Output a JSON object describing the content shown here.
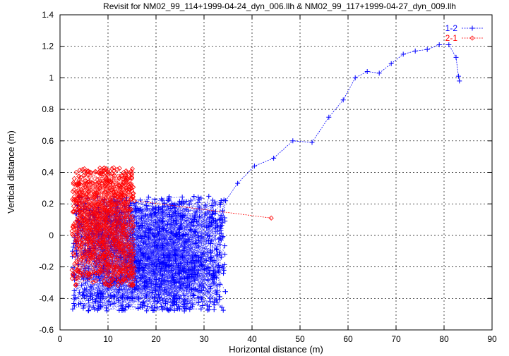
{
  "chart_data": {
    "type": "line",
    "title": "Revisit for NM02_99_114+1999-04-24_dyn_006.llh & NM02_99_117+1999-04-27_dyn_009.llh",
    "xlabel": "Horizontal distance (m)",
    "ylabel": "Vertical distance (m)",
    "xlim": [
      0,
      90
    ],
    "ylim": [
      -0.6,
      1.4
    ],
    "xticks": [
      "0",
      "10",
      "20",
      "30",
      "40",
      "50",
      "60",
      "70",
      "80",
      "90"
    ],
    "yticks": [
      "-0.6",
      "-0.4",
      "-0.2",
      "0",
      "0.2",
      "0.4",
      "0.6",
      "0.8",
      "1",
      "1.2",
      "1.4"
    ],
    "grid": true,
    "legend_position": "top-right",
    "series": [
      {
        "name": "1-2",
        "color": "#0000ff",
        "marker": "plus",
        "dense_region": {
          "x": [
            2.5,
            34.5
          ],
          "y": [
            -0.48,
            0.25
          ]
        },
        "x": [
          34.5,
          37,
          40.5,
          44.5,
          48.5,
          52.5,
          56,
          59,
          61.5,
          64,
          66.5,
          69,
          71.5,
          74,
          76.5,
          79,
          81,
          82.5,
          83,
          83.2
        ],
        "y": [
          0.22,
          0.33,
          0.44,
          0.49,
          0.6,
          0.59,
          0.75,
          0.86,
          1.0,
          1.04,
          1.03,
          1.09,
          1.15,
          1.17,
          1.18,
          1.21,
          1.21,
          1.13,
          1.01,
          0.98
        ]
      },
      {
        "name": "2-1",
        "color": "#ff0000",
        "marker": "diamond",
        "dense_region": {
          "x": [
            2.5,
            15.5
          ],
          "y": [
            -0.32,
            0.43
          ]
        },
        "x": [
          15.5,
          44
        ],
        "y": [
          0.22,
          0.11
        ]
      }
    ]
  }
}
